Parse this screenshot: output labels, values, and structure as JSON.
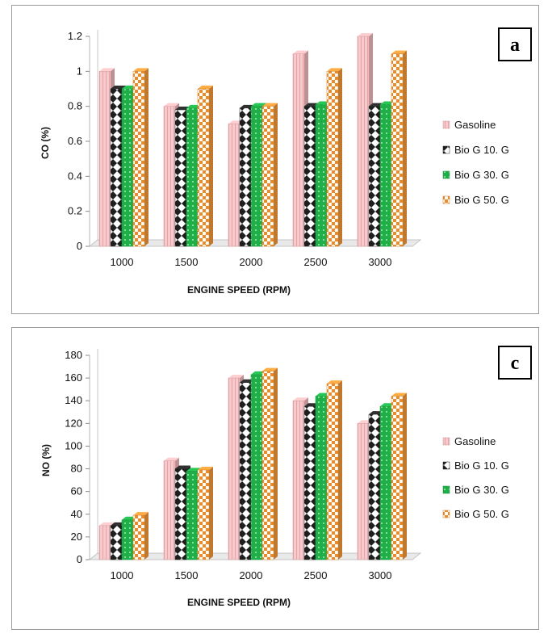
{
  "chart_data": [
    {
      "panel_letter": "a",
      "type": "bar",
      "style": "3d-clustered",
      "categories": [
        "1000",
        "1500",
        "2000",
        "2500",
        "3000"
      ],
      "xlabel": "ENGINE SPEED (RPM)",
      "ylabel": "CO (%)",
      "ylim": [
        0,
        1.2
      ],
      "yticks": [
        "0",
        "0.2",
        "0.4",
        "0.6",
        "0.8",
        "1",
        "1.2"
      ],
      "legend_position": "right",
      "series": [
        {
          "name": "Gasoline",
          "values": [
            1.0,
            0.8,
            0.7,
            1.1,
            1.2
          ]
        },
        {
          "name": "Bio G 10. G",
          "values": [
            0.9,
            0.78,
            0.79,
            0.8,
            0.8
          ]
        },
        {
          "name": "Bio G 30. G",
          "values": [
            0.9,
            0.79,
            0.8,
            0.81,
            0.81
          ]
        },
        {
          "name": "Bio G 50. G",
          "values": [
            1.0,
            0.9,
            0.8,
            1.0,
            1.1
          ]
        }
      ]
    },
    {
      "panel_letter": "c",
      "type": "bar",
      "style": "3d-clustered",
      "categories": [
        "1000",
        "1500",
        "2000",
        "2500",
        "3000"
      ],
      "xlabel": "ENGINE SPEED (RPM)",
      "ylabel": "NO (%)",
      "ylim": [
        0,
        180
      ],
      "yticks": [
        "0",
        "20",
        "40",
        "60",
        "80",
        "100",
        "120",
        "140",
        "160",
        "180"
      ],
      "legend_position": "right",
      "series": [
        {
          "name": "Gasoline",
          "values": [
            30,
            87,
            160,
            140,
            120
          ]
        },
        {
          "name": "Bio G 10. G",
          "values": [
            30,
            80,
            156,
            135,
            128
          ]
        },
        {
          "name": "Bio G 30. G",
          "values": [
            35,
            78,
            163,
            144,
            135
          ]
        },
        {
          "name": "Bio G 50. G",
          "values": [
            39,
            79,
            166,
            155,
            144
          ]
        }
      ]
    }
  ],
  "series_colors": [
    "#f2b8bb",
    "#2b2b2b",
    "#22b24c",
    "#f39a3c"
  ]
}
